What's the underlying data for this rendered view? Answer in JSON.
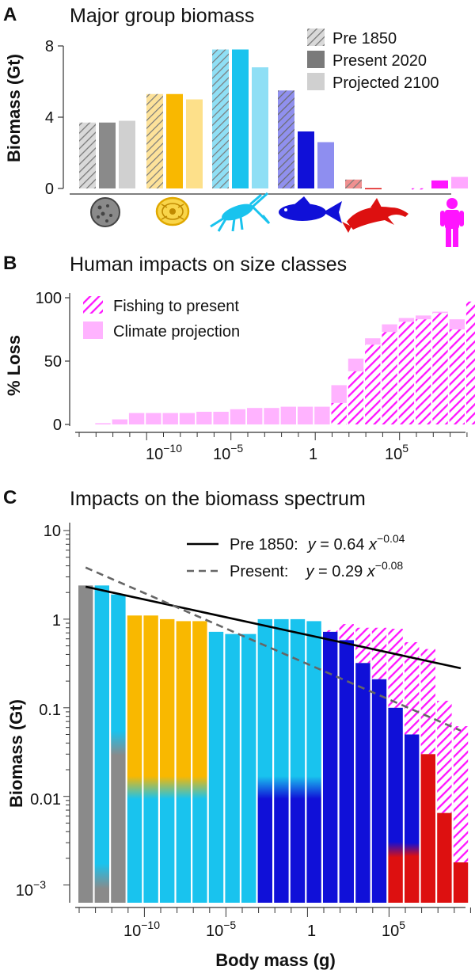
{
  "chart_data": [
    {
      "panel": "A",
      "type": "bar",
      "title": "Major group biomass",
      "ylabel": "Biomass (Gt)",
      "ylim": [
        0,
        8.6
      ],
      "yticks": [
        "0",
        "4",
        "8"
      ],
      "categories": [
        "bacteria",
        "protists",
        "zooplankton",
        "fish",
        "marine mammals",
        "humans"
      ],
      "icons": [
        "bacterium-icon",
        "protist-icon",
        "copepod-icon",
        "fish-icon",
        "dolphin-icon",
        "human-icon"
      ],
      "colors": [
        "#8a8a8a",
        "#f9b800",
        "#19c3ee",
        "#1010d8",
        "#dd1010",
        "#ff14ff"
      ],
      "series": [
        {
          "name": "Pre 1850",
          "style": "hatched",
          "values": [
            3.7,
            5.3,
            7.8,
            5.5,
            0.5,
            0.01
          ]
        },
        {
          "name": "Present 2020",
          "style": "solid",
          "values": [
            3.7,
            5.3,
            7.8,
            3.2,
            0.02,
            0.45
          ]
        },
        {
          "name": "Projected 2100",
          "style": "light",
          "values": [
            3.8,
            5.0,
            6.8,
            2.6,
            0.0,
            0.65
          ]
        }
      ]
    },
    {
      "panel": "B",
      "type": "bar",
      "title": "Human impacts on size classes",
      "ylabel": "% Loss",
      "ylim": [
        0,
        100
      ],
      "yticks": [
        "0",
        "50",
        "100"
      ],
      "xlabels": {
        "m10": "10",
        "m10sup": "−10",
        "m5": "10",
        "m5sup": "−5",
        "one": "1",
        "p5": "10",
        "p5sup": "5"
      },
      "bins_log10g_start": [
        -13,
        -12,
        -11,
        -10,
        -9,
        -8,
        -7,
        -6,
        -5,
        -4,
        -3,
        -2,
        -1,
        0,
        1,
        2,
        3,
        4,
        5,
        6,
        7,
        8,
        9
      ],
      "fishing": [
        0,
        0,
        0,
        0,
        0,
        0,
        0,
        0,
        0,
        0,
        0,
        0,
        0,
        0,
        17,
        42,
        63,
        73,
        81,
        83,
        88,
        75,
        97
      ],
      "climate": [
        1,
        4,
        9,
        9,
        9,
        9,
        10,
        10,
        12,
        13,
        13,
        14,
        14,
        14,
        14,
        10,
        5,
        6,
        3,
        3,
        1,
        8,
        0
      ],
      "legend": [
        {
          "label": "Fishing to present",
          "style": "hatched"
        },
        {
          "label": "Climate projection",
          "style": "solid"
        }
      ]
    },
    {
      "panel": "C",
      "type": "bar",
      "yscale": "log",
      "title": "Impacts on the biomass spectrum",
      "ylabel": "Biomass (Gt)",
      "xlabel": "Body mass (g)",
      "ylim_log10": [
        -3.2,
        1.0
      ],
      "yticks": {
        "ten": "10",
        "one": "1",
        "p1": "0.1",
        "p01": "0.01",
        "e3": "10",
        "e3sup": "−3"
      },
      "xticks": {
        "m10": "10",
        "m10sup": "−10",
        "m5": "10",
        "m5sup": "−5",
        "one": "1",
        "p5": "10",
        "p5sup": "5"
      },
      "bins_log10g_start": [
        -14,
        -13,
        -12,
        -11,
        -10,
        -9,
        -8,
        -7,
        -6,
        -5,
        -4,
        -3,
        -2,
        -1,
        0,
        1,
        2,
        3,
        4,
        5,
        6,
        7,
        8,
        9
      ],
      "present": [
        2.4,
        2.4,
        1.9,
        1.1,
        1.1,
        1.0,
        0.95,
        0.95,
        0.72,
        0.68,
        0.68,
        1.0,
        1.0,
        1.0,
        0.95,
        0.72,
        0.58,
        0.32,
        0.21,
        0.1,
        0.05,
        0.03,
        0.0065,
        0.0018
      ],
      "pre1850": [
        2.4,
        2.4,
        1.9,
        1.1,
        1.1,
        1.0,
        0.95,
        0.95,
        0.72,
        0.68,
        0.68,
        1.0,
        1.0,
        1.0,
        0.95,
        0.75,
        0.88,
        0.8,
        0.8,
        0.78,
        0.55,
        0.46,
        0.12,
        0.062
      ],
      "composition": [
        [
          "#8a8a8a"
        ],
        [
          "#8a8a8a",
          "#19c3ee"
        ],
        [
          "#8a8a8a",
          "#19c3ee"
        ],
        [
          "#19c3ee",
          "#f9b800"
        ],
        [
          "#19c3ee",
          "#f9b800"
        ],
        [
          "#19c3ee",
          "#f9b800"
        ],
        [
          "#19c3ee",
          "#f9b800"
        ],
        [
          "#19c3ee",
          "#f9b800"
        ],
        [
          "#19c3ee"
        ],
        [
          "#19c3ee"
        ],
        [
          "#19c3ee"
        ],
        [
          "#1010d8",
          "#19c3ee"
        ],
        [
          "#1010d8",
          "#19c3ee"
        ],
        [
          "#1010d8",
          "#19c3ee"
        ],
        [
          "#1010d8",
          "#19c3ee"
        ],
        [
          "#1010d8"
        ],
        [
          "#1010d8"
        ],
        [
          "#1010d8"
        ],
        [
          "#1010d8"
        ],
        [
          "#dd1010",
          "#1010d8"
        ],
        [
          "#dd1010",
          "#1010d8"
        ],
        [
          "#dd1010"
        ],
        [
          "#dd1010"
        ],
        [
          "#dd1010"
        ]
      ],
      "transition_log10": [
        null,
        -2.9,
        -1.4,
        -1.9,
        -1.9,
        -1.9,
        -1.9,
        -1.9,
        null,
        null,
        null,
        -1.9,
        -1.9,
        -1.9,
        -1.9,
        null,
        null,
        null,
        null,
        -2.6,
        -2.6,
        null,
        null,
        null
      ],
      "fits": [
        {
          "name": "Pre 1850",
          "a": 0.64,
          "b": -0.04,
          "style": "solid",
          "color": "#000000",
          "label_name": "Pre 1850:",
          "eq_y": "y",
          "eq_mid": " = 0.64 ",
          "eq_x": "x",
          "eq_exp": "−0.04"
        },
        {
          "name": "Present",
          "a": 0.29,
          "b": -0.08,
          "style": "dashed",
          "color": "#666666",
          "label_name": "Present:",
          "eq_y": "y",
          "eq_mid": " = 0.29 ",
          "eq_x": "x",
          "eq_exp": "−0.08"
        }
      ]
    }
  ]
}
